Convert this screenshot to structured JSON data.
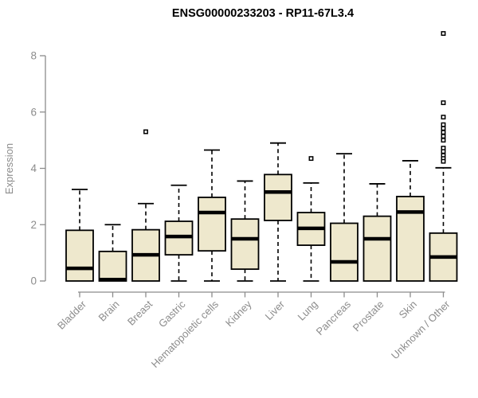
{
  "chart_data": {
    "type": "box",
    "title": "ENSG00000233203 - RP11-67L3.4",
    "ylabel": "Expression",
    "xlabel": "",
    "ylim": [
      0,
      8
    ],
    "yticks": [
      0,
      2,
      4,
      6,
      8
    ],
    "grid": false,
    "legend": false,
    "colors": {
      "box_fill": "#EEE8CD",
      "box_stroke": "#000000",
      "median": "#000000",
      "whisker": "#000000",
      "outlier_stroke": "#000000",
      "outlier_fill": "#FFFFFF",
      "axis": "#8C8C8C",
      "title": "#000000"
    },
    "categories": [
      "Bladder",
      "Brain",
      "Breast",
      "Gastric",
      "Hematopoietic cells",
      "Kidney",
      "Liver",
      "Lung",
      "Pancreas",
      "Prostate",
      "Skin",
      "Unknown / Other"
    ],
    "series": [
      {
        "label": "Bladder",
        "whislo": 0,
        "q1": 0,
        "med": 0.45,
        "q3": 1.8,
        "whishi": 3.25,
        "outliers": []
      },
      {
        "label": "Brain",
        "whislo": 0,
        "q1": 0,
        "med": 0.05,
        "q3": 1.05,
        "whishi": 2.0,
        "outliers": []
      },
      {
        "label": "Breast",
        "whislo": 0,
        "q1": 0,
        "med": 0.93,
        "q3": 1.82,
        "whishi": 2.75,
        "outliers": [
          5.3
        ]
      },
      {
        "label": "Gastric",
        "whislo": 0,
        "q1": 0.93,
        "med": 1.58,
        "q3": 2.12,
        "whishi": 3.4,
        "outliers": []
      },
      {
        "label": "Hematopoietic cells",
        "whislo": 0,
        "q1": 1.07,
        "med": 2.43,
        "q3": 2.97,
        "whishi": 4.65,
        "outliers": []
      },
      {
        "label": "Kidney",
        "whislo": 0,
        "q1": 0.42,
        "med": 1.5,
        "q3": 2.2,
        "whishi": 3.55,
        "outliers": []
      },
      {
        "label": "Liver",
        "whislo": 0,
        "q1": 2.15,
        "med": 3.16,
        "q3": 3.78,
        "whishi": 4.9,
        "outliers": []
      },
      {
        "label": "Lung",
        "whislo": 0,
        "q1": 1.27,
        "med": 1.87,
        "q3": 2.43,
        "whishi": 3.48,
        "outliers": [
          4.35
        ]
      },
      {
        "label": "Pancreas",
        "whislo": 0,
        "q1": 0,
        "med": 0.68,
        "q3": 2.05,
        "whishi": 4.52,
        "outliers": []
      },
      {
        "label": "Prostate",
        "whislo": 0,
        "q1": 0,
        "med": 1.5,
        "q3": 2.3,
        "whishi": 3.45,
        "outliers": []
      },
      {
        "label": "Skin",
        "whislo": 0,
        "q1": 0,
        "med": 2.45,
        "q3": 3.0,
        "whishi": 4.27,
        "outliers": []
      },
      {
        "label": "Unknown / Other",
        "whislo": 0,
        "q1": 0,
        "med": 0.85,
        "q3": 1.7,
        "whishi": 4.02,
        "outliers": [
          8.79,
          6.33,
          5.82,
          5.55,
          5.42,
          5.28,
          5.14,
          5.0,
          4.72,
          4.6,
          4.46,
          4.35,
          4.25
        ]
      }
    ]
  }
}
